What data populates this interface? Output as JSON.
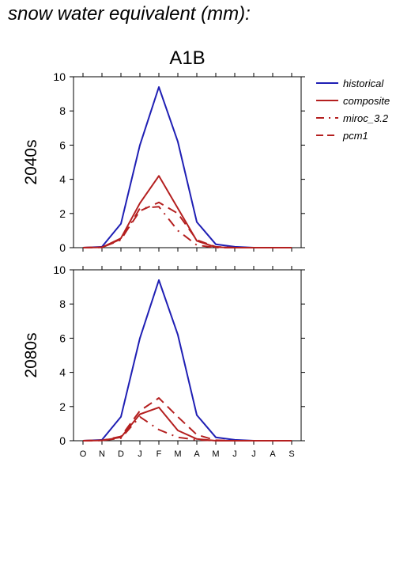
{
  "page_title": "snow water equivalent (mm):",
  "chart_data": [
    {
      "type": "line",
      "title": "A1B",
      "row_label": "2040s",
      "categories": [
        "O",
        "N",
        "D",
        "J",
        "F",
        "M",
        "A",
        "M",
        "J",
        "J",
        "A",
        "S"
      ],
      "ylim": [
        0,
        10
      ],
      "yticks": [
        "0",
        "2",
        "4",
        "6",
        "8",
        "10"
      ],
      "series": [
        {
          "name": "historical",
          "color": "#1f1fb4",
          "dash": "solid",
          "values": [
            0,
            0.05,
            1.4,
            6.0,
            9.4,
            6.2,
            1.5,
            0.2,
            0.05,
            0,
            0,
            0
          ]
        },
        {
          "name": "composite",
          "color": "#b41f1f",
          "dash": "solid",
          "values": [
            0,
            0.02,
            0.55,
            2.6,
            4.2,
            2.3,
            0.4,
            0.03,
            0,
            0,
            0,
            0
          ]
        },
        {
          "name": "miroc_3.2",
          "color": "#b41f1f",
          "dash": "dashdot",
          "values": [
            0,
            0.02,
            0.45,
            2.3,
            2.4,
            1.0,
            0.15,
            0,
            0,
            0,
            0,
            0
          ]
        },
        {
          "name": "pcm1",
          "color": "#b41f1f",
          "dash": "dashed",
          "values": [
            0,
            0.02,
            0.5,
            2.15,
            2.65,
            2.0,
            0.45,
            0.05,
            0,
            0,
            0,
            0
          ]
        }
      ]
    },
    {
      "type": "line",
      "title": "",
      "row_label": "2080s",
      "categories": [
        "O",
        "N",
        "D",
        "J",
        "F",
        "M",
        "A",
        "M",
        "J",
        "J",
        "A",
        "S"
      ],
      "ylim": [
        0,
        10
      ],
      "yticks": [
        "0",
        "2",
        "4",
        "6",
        "8",
        "10"
      ],
      "series": [
        {
          "name": "historical",
          "color": "#1f1fb4",
          "dash": "solid",
          "values": [
            0,
            0.05,
            1.4,
            6.0,
            9.4,
            6.2,
            1.5,
            0.2,
            0.05,
            0,
            0,
            0
          ]
        },
        {
          "name": "composite",
          "color": "#b41f1f",
          "dash": "solid",
          "values": [
            0,
            0.02,
            0.2,
            1.55,
            1.95,
            0.6,
            0.1,
            0,
            0,
            0,
            0,
            0
          ]
        },
        {
          "name": "miroc_3.2",
          "color": "#b41f1f",
          "dash": "dashdot",
          "values": [
            0,
            0.02,
            0.15,
            1.4,
            0.65,
            0.2,
            0.05,
            0,
            0,
            0,
            0,
            0
          ]
        },
        {
          "name": "pcm1",
          "color": "#b41f1f",
          "dash": "dashed",
          "values": [
            0,
            0.02,
            0.25,
            1.75,
            2.5,
            1.4,
            0.35,
            0.03,
            0,
            0,
            0,
            0
          ]
        }
      ]
    }
  ],
  "legend": [
    {
      "label": "historical",
      "color": "#1f1fb4",
      "dash": "solid"
    },
    {
      "label": "composite",
      "color": "#b41f1f",
      "dash": "solid"
    },
    {
      "label": "miroc_3.2",
      "color": "#b41f1f",
      "dash": "dashdot"
    },
    {
      "label": "pcm1",
      "color": "#b41f1f",
      "dash": "dashed"
    }
  ],
  "legend_placement": "top-right",
  "grid": false
}
